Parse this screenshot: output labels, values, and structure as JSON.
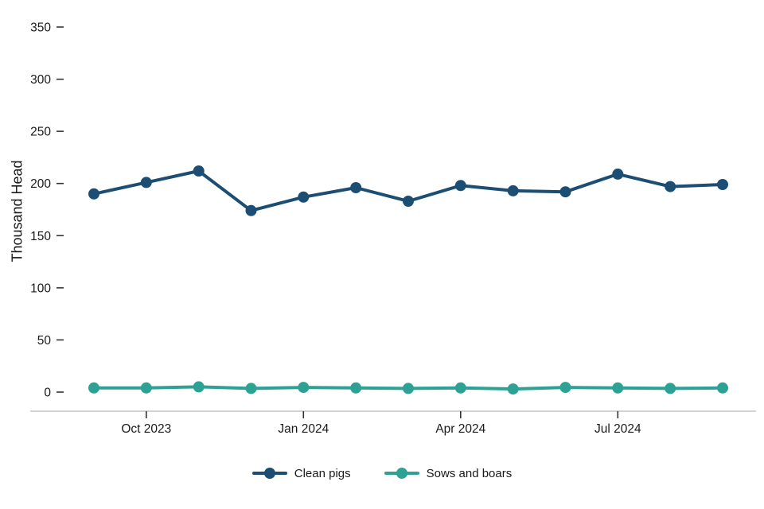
{
  "chart_data": {
    "type": "line",
    "title": "",
    "xlabel": "",
    "ylabel": "Thousand Head",
    "ylim": [
      0,
      350
    ],
    "yticks": [
      0,
      50,
      100,
      150,
      200,
      250,
      300,
      350
    ],
    "x": [
      "Sep 2023",
      "Oct 2023",
      "Nov 2023",
      "Dec 2023",
      "Jan 2024",
      "Feb 2024",
      "Mar 2024",
      "Apr 2024",
      "May 2024",
      "Jun 2024",
      "Jul 2024",
      "Aug 2024",
      "Sep 2024"
    ],
    "xtick_labels": [
      "Oct 2023",
      "Jan 2024",
      "Apr 2024",
      "Jul 2024"
    ],
    "xtick_indices": [
      1,
      4,
      7,
      10
    ],
    "grid": false,
    "legend_position": "bottom",
    "series": [
      {
        "name": "Clean pigs",
        "color": "#1c4e74",
        "values": [
          190,
          201,
          212,
          174,
          187,
          196,
          183,
          198,
          193,
          192,
          209,
          197,
          199
        ]
      },
      {
        "name": "Sows and boars",
        "color": "#2da294",
        "values": [
          4,
          4,
          5,
          3.5,
          4.5,
          4,
          3.5,
          4,
          3,
          4.5,
          4,
          3.5,
          4
        ]
      }
    ]
  },
  "axis_style": {
    "axis_line_color": "#c6c6c6",
    "tick_color": "#333333",
    "label_color": "#1a1a1a"
  }
}
